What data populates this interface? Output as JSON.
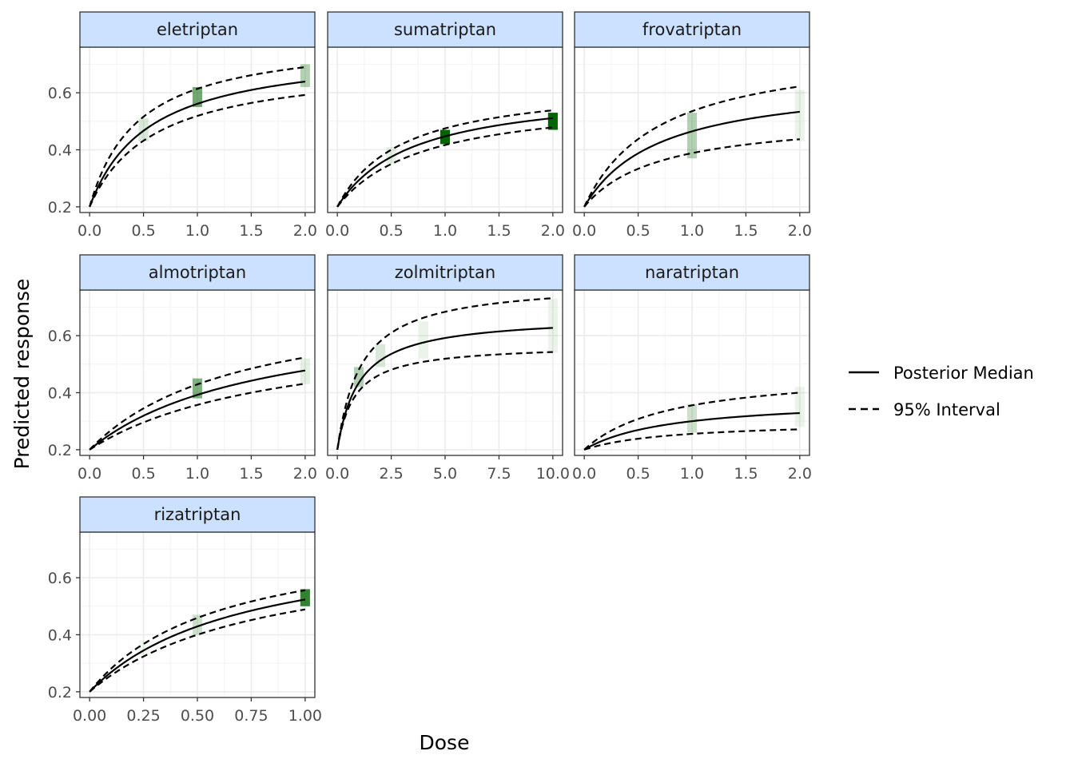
{
  "chart_data": {
    "type": "line",
    "xlabel": "Dose",
    "ylabel": "Predicted response",
    "ylim": [
      0.18,
      0.76
    ],
    "yticks": [
      0.2,
      0.4,
      0.6
    ],
    "ytick_labels": [
      "0.2",
      "0.4",
      "0.6"
    ],
    "grid": true,
    "legend": {
      "position": "right",
      "entries": [
        {
          "label": "Posterior Median",
          "linetype": "solid"
        },
        {
          "label": "95% Interval",
          "linetype": "dashed"
        }
      ]
    },
    "colors": {
      "strip_fill": "#cce0ff",
      "band_fill": "#006400",
      "line": "#000000",
      "panel_border": "#333333",
      "grid": "#ebebeb"
    },
    "panels": [
      {
        "name": "eletriptan",
        "xlim": [
          0,
          2
        ],
        "xticks": [
          0,
          0.5,
          1,
          1.5,
          2
        ],
        "xtick_labels": [
          "0.0",
          "0.5",
          "1.0",
          "1.5",
          "2.0"
        ],
        "median": {
          "emax": 0.56,
          "ed50": 0.55
        },
        "lower": {
          "emax": 0.51,
          "ed50": 0.6
        },
        "upper": {
          "emax": 0.6,
          "ed50": 0.45
        },
        "bands": [
          {
            "dose": 0.5,
            "low": 0.43,
            "high": 0.51,
            "opacity": 0.15
          },
          {
            "dose": 1.0,
            "low": 0.55,
            "high": 0.62,
            "opacity": 0.55
          },
          {
            "dose": 2.0,
            "low": 0.62,
            "high": 0.7,
            "opacity": 0.3
          }
        ]
      },
      {
        "name": "sumatriptan",
        "xlim": [
          0,
          2
        ],
        "xticks": [
          0,
          0.5,
          1,
          1.5,
          2
        ],
        "xtick_labels": [
          "0.0",
          "0.5",
          "1.0",
          "1.5",
          "2.0"
        ],
        "median": {
          "emax": 0.42,
          "ed50": 0.7
        },
        "lower": {
          "emax": 0.39,
          "ed50": 0.8
        },
        "upper": {
          "emax": 0.44,
          "ed50": 0.6
        },
        "bands": [
          {
            "dose": 0.5,
            "low": 0.35,
            "high": 0.41,
            "opacity": 0.1
          },
          {
            "dose": 1.0,
            "low": 0.42,
            "high": 0.47,
            "opacity": 1.0
          },
          {
            "dose": 2.0,
            "low": 0.47,
            "high": 0.53,
            "opacity": 1.0
          }
        ]
      },
      {
        "name": "frovatriptan",
        "xlim": [
          0,
          2
        ],
        "xticks": [
          0,
          0.5,
          1,
          1.5,
          2
        ],
        "xtick_labels": [
          "0.0",
          "0.5",
          "1.0",
          "1.5",
          "2.0"
        ],
        "median": {
          "emax": 0.45,
          "ed50": 0.7
        },
        "lower": {
          "emax": 0.32,
          "ed50": 0.7
        },
        "upper": {
          "emax": 0.57,
          "ed50": 0.7
        },
        "bands": [
          {
            "dose": 1.0,
            "low": 0.37,
            "high": 0.53,
            "opacity": 0.3
          },
          {
            "dose": 2.0,
            "low": 0.43,
            "high": 0.61,
            "opacity": 0.08
          }
        ]
      },
      {
        "name": "almotriptan",
        "xlim": [
          0,
          2
        ],
        "xticks": [
          0,
          0.5,
          1,
          1.5,
          2
        ],
        "xtick_labels": [
          "0.0",
          "0.5",
          "1.0",
          "1.5",
          "2.0"
        ],
        "median": {
          "emax": 0.5,
          "ed50": 1.6
        },
        "lower": {
          "emax": 0.44,
          "ed50": 1.8
        },
        "upper": {
          "emax": 0.55,
          "ed50": 1.4
        },
        "bands": [
          {
            "dose": 1.0,
            "low": 0.38,
            "high": 0.45,
            "opacity": 0.5
          },
          {
            "dose": 2.0,
            "low": 0.43,
            "high": 0.52,
            "opacity": 0.1
          }
        ]
      },
      {
        "name": "zolmitriptan",
        "xlim": [
          0,
          10
        ],
        "xticks": [
          0,
          2.5,
          5,
          7.5,
          10
        ],
        "xtick_labels": [
          "0.0",
          "2.5",
          "5.0",
          "7.5",
          "10.0"
        ],
        "median": {
          "emax": 0.47,
          "ed50": 1.0
        },
        "lower": {
          "emax": 0.37,
          "ed50": 0.8
        },
        "upper": {
          "emax": 0.59,
          "ed50": 1.1
        },
        "bands": [
          {
            "dose": 1.0,
            "low": 0.42,
            "high": 0.49,
            "opacity": 0.3
          },
          {
            "dose": 2.0,
            "low": 0.49,
            "high": 0.57,
            "opacity": 0.15
          },
          {
            "dose": 4.0,
            "low": 0.52,
            "high": 0.65,
            "opacity": 0.08
          },
          {
            "dose": 10.0,
            "low": 0.54,
            "high": 0.73,
            "opacity": 0.08
          }
        ]
      },
      {
        "name": "naratriptan",
        "xlim": [
          0,
          2
        ],
        "xticks": [
          0,
          0.5,
          1,
          1.5,
          2
        ],
        "xtick_labels": [
          "0.0",
          "0.5",
          "1.0",
          "1.5",
          "2.0"
        ],
        "median": {
          "emax": 0.18,
          "ed50": 0.8
        },
        "lower": {
          "emax": 0.1,
          "ed50": 0.8
        },
        "upper": {
          "emax": 0.28,
          "ed50": 0.8
        },
        "bands": [
          {
            "dose": 1.0,
            "low": 0.26,
            "high": 0.36,
            "opacity": 0.2
          },
          {
            "dose": 2.0,
            "low": 0.28,
            "high": 0.42,
            "opacity": 0.08
          }
        ]
      },
      {
        "name": "rizatriptan",
        "xlim": [
          0,
          1
        ],
        "xticks": [
          0,
          0.25,
          0.5,
          0.75,
          1
        ],
        "xtick_labels": [
          "0.00",
          "0.25",
          "0.50",
          "0.75",
          "1.00"
        ],
        "median": {
          "emax": 0.55,
          "ed50": 0.7
        },
        "lower": {
          "emax": 0.52,
          "ed50": 0.8
        },
        "upper": {
          "emax": 0.57,
          "ed50": 0.6
        },
        "bands": [
          {
            "dose": 0.25,
            "low": 0.33,
            "high": 0.38,
            "opacity": 0.06
          },
          {
            "dose": 0.5,
            "low": 0.4,
            "high": 0.47,
            "opacity": 0.2
          },
          {
            "dose": 1.0,
            "low": 0.5,
            "high": 0.56,
            "opacity": 0.8
          }
        ]
      }
    ]
  }
}
